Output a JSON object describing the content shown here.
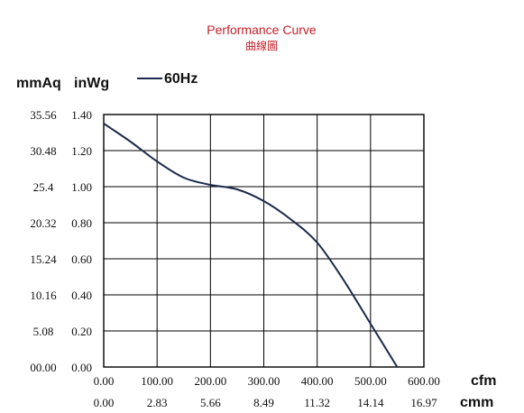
{
  "chart_data": {
    "type": "line",
    "title": "Performance Curve",
    "subtitle": "曲線圖",
    "left_axis_unit": "mmAq",
    "right_axis_unit": "inWg",
    "x_unit_primary": "cfm",
    "x_unit_secondary": "cmm",
    "xlim": [
      0,
      600
    ],
    "ylim": [
      0,
      1.4
    ],
    "x_ticks": [
      "0.00",
      "100.00",
      "200.00",
      "300.00",
      "400.00",
      "500.00",
      "600.00"
    ],
    "x_ticks_secondary": [
      "0.00",
      "2.83",
      "5.66",
      "8.49",
      "11.32",
      "14.14",
      "16.97"
    ],
    "y_ticks_inwg": [
      "0.00",
      "0.20",
      "0.40",
      "0.60",
      "0.80",
      "1.00",
      "1.20",
      "1.40"
    ],
    "y_ticks_mmaq": [
      "00.00",
      "5.08",
      "10.16",
      "15.24",
      "20.32",
      "25.4",
      "30.48",
      "35.56"
    ],
    "grid": true,
    "legend_position": "top-left",
    "series": [
      {
        "name": "60Hz",
        "color": "#1b2a4a",
        "x": [
          0,
          50,
          100,
          150,
          200,
          250,
          300,
          350,
          400,
          450,
          500,
          550
        ],
        "y": [
          1.35,
          1.25,
          1.14,
          1.05,
          1.01,
          0.985,
          0.92,
          0.82,
          0.69,
          0.48,
          0.24,
          0.0
        ]
      }
    ]
  }
}
